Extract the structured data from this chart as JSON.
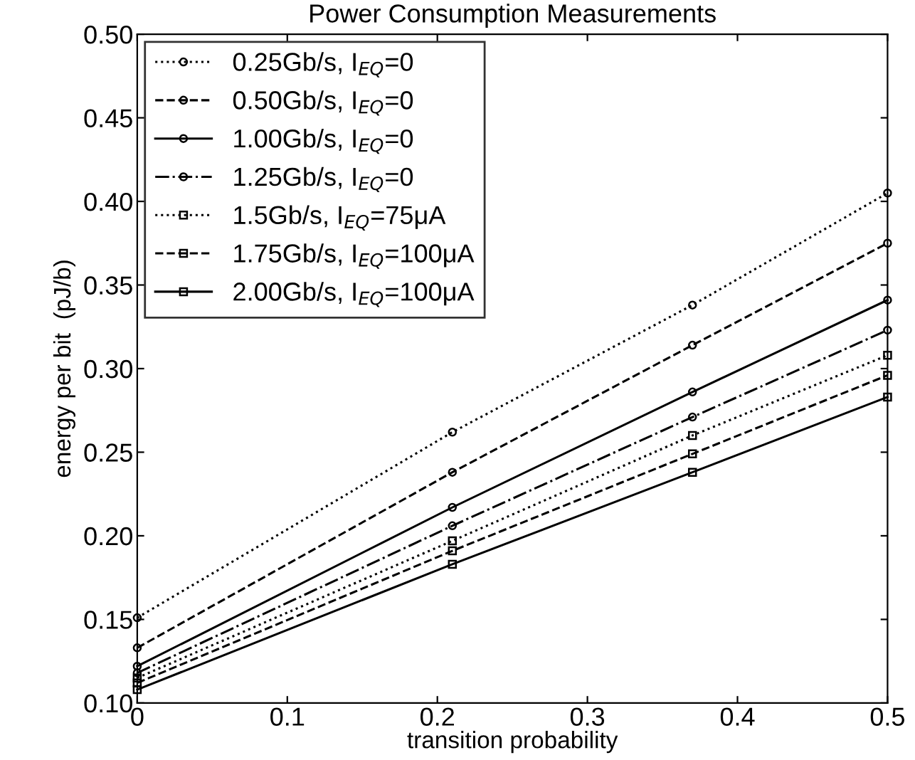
{
  "chart_data": {
    "type": "line",
    "title": "Power Consumption Measurements",
    "xlabel": "transition probability",
    "ylabel": "energy per bit  (pJ/b)",
    "x": [
      0,
      0.21,
      0.37,
      0.5
    ],
    "xlim": [
      0,
      0.5
    ],
    "xticks": [
      {
        "value": 0,
        "label": "0"
      },
      0.1,
      0.2,
      0.3,
      0.4,
      0.5
    ],
    "ylim": [
      0.1,
      0.5
    ],
    "yticks": [
      {
        "value": 0.1,
        "label": "0.10"
      },
      0.15,
      {
        "value": 0.2,
        "label": "0.20"
      },
      0.25,
      {
        "value": 0.3,
        "label": "0.30"
      },
      0.35,
      {
        "value": 0.4,
        "label": "0.40"
      },
      0.45,
      {
        "value": 0.5,
        "label": "0.50"
      }
    ],
    "grid": false,
    "legend": "top left",
    "series": [
      {
        "name": "0.25Gb/s, I$_{EQ}$=0",
        "color": "#000000",
        "marker": "circle",
        "line_style": "dotted",
        "values": [
          0.151,
          0.262,
          0.338,
          0.405
        ]
      },
      {
        "name": "0.50Gb/s, I$_{EQ}$=0",
        "color": "#000000",
        "marker": "circle",
        "line_style": "dashed",
        "values": [
          0.133,
          0.238,
          0.314,
          0.375
        ]
      },
      {
        "name": "1.00Gb/s, I$_{EQ}$=0",
        "color": "#000000",
        "marker": "circle",
        "line_style": "solid",
        "values": [
          0.122,
          0.217,
          0.286,
          0.341
        ]
      },
      {
        "name": "1.25Gb/s, I$_{EQ}$=0",
        "color": "#000000",
        "marker": "circle",
        "line_style": "dashdot",
        "values": [
          0.118,
          0.206,
          0.271,
          0.323
        ]
      },
      {
        "name": "1.5Gb/s, I$_{EQ}$=75μA",
        "color": "#000000",
        "marker": "square",
        "line_style": "dotted",
        "values": [
          0.115,
          0.197,
          0.26,
          0.308
        ]
      },
      {
        "name": "1.75Gb/s, I$_{EQ}$=100μA",
        "color": "#000000",
        "marker": "square",
        "line_style": "dashed",
        "values": [
          0.112,
          0.191,
          0.249,
          0.296
        ]
      },
      {
        "name": "2.00Gb/s, I$_{EQ}$=100μA",
        "color": "#000000",
        "marker": "square",
        "line_style": "solid",
        "values": [
          0.108,
          0.183,
          0.238,
          0.283
        ]
      }
    ]
  }
}
